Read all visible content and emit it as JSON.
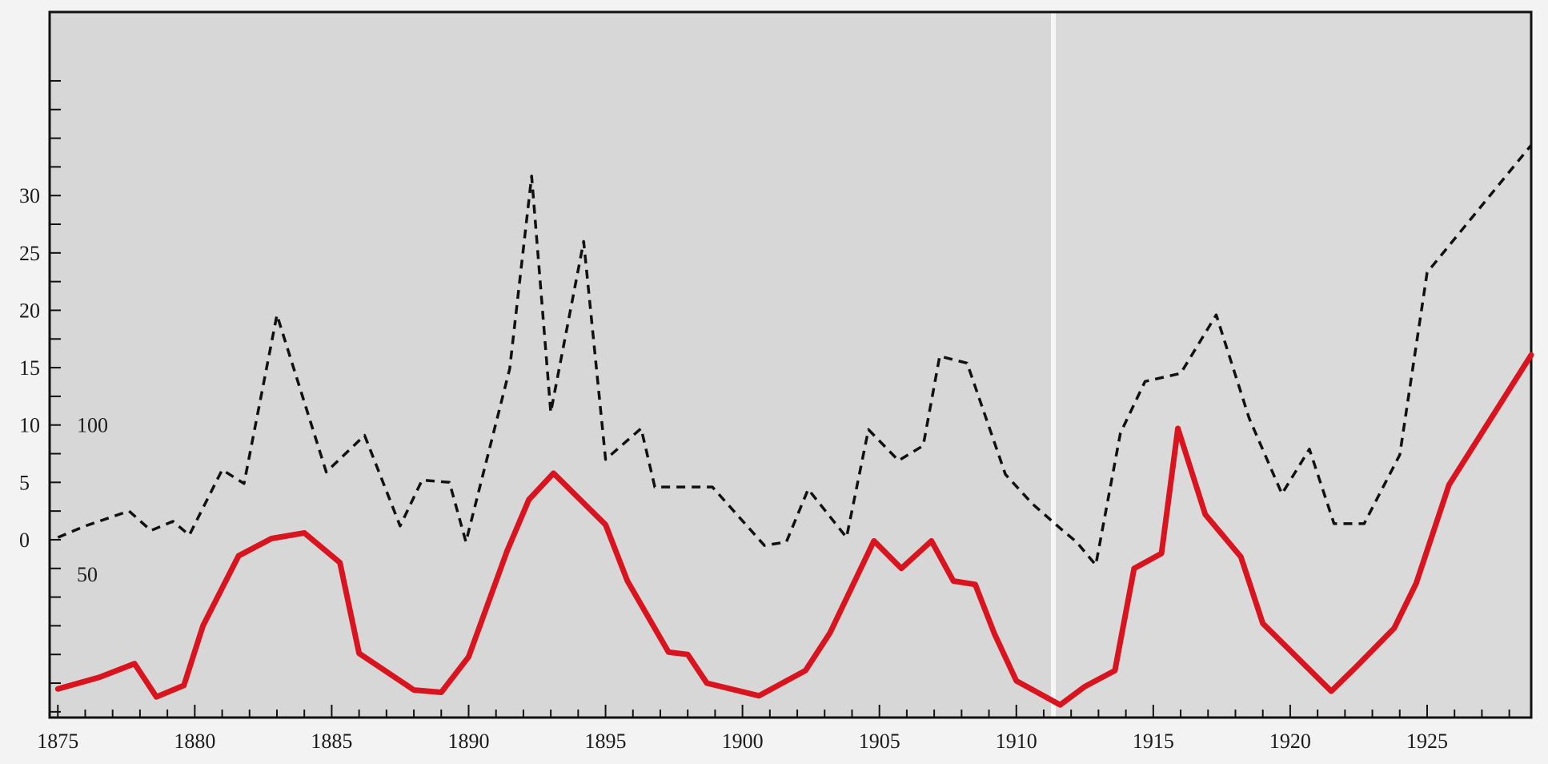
{
  "chart_data": {
    "type": "line",
    "title": "",
    "xlabel": "",
    "ylabel": "",
    "xlim": [
      1874.7,
      1928.8
    ],
    "ylim": [
      -15.5,
      46
    ],
    "grid": false,
    "x_ticks": [
      1875,
      1880,
      1885,
      1890,
      1895,
      1900,
      1905,
      1910,
      1915,
      1920,
      1925
    ],
    "x_tick_labels": [
      "1875",
      "1880",
      "1885",
      "1890",
      "1895",
      "1900",
      "1905",
      "1910",
      "1915",
      "1920",
      "1925"
    ],
    "y_ticks": [
      0,
      5,
      10,
      15,
      20,
      25,
      30
    ],
    "y_tick_labels": [
      "0",
      "5",
      "10",
      "15",
      "20",
      "25",
      "30"
    ],
    "extra_labels": [
      {
        "text": "100",
        "y": 10
      },
      {
        "text": "50",
        "y": -3
      }
    ],
    "series": [
      {
        "style": "dashed",
        "color": "#111111",
        "x": [
          1875,
          1876,
          1877.6,
          1878.4,
          1879.2,
          1879.8,
          1881,
          1881.8,
          1883,
          1884.8,
          1886.2,
          1887.5,
          1888.3,
          1889.3,
          1889.9,
          1891.5,
          1892.3,
          1893,
          1894.2,
          1895,
          1896.3,
          1896.8,
          1898.9,
          1900.8,
          1901.6,
          1902.4,
          1903.8,
          1904.6,
          1905.7,
          1906.6,
          1907.2,
          1908.2,
          1909.6,
          1910.6,
          1911.7,
          1912.2,
          1912.9,
          1913.8,
          1914.7,
          1916,
          1917.3,
          1918.5,
          1919.7,
          1920.7,
          1921.6,
          1922.7,
          1924,
          1925,
          1928.8
        ],
        "y": [
          0.2,
          1.2,
          2.5,
          0.8,
          1.6,
          0.4,
          6.1,
          4.9,
          19.6,
          5.9,
          9.1,
          1.2,
          5.2,
          5.0,
          -0.2,
          14.9,
          31.7,
          11.1,
          26.0,
          7.0,
          9.7,
          4.6,
          4.6,
          -0.5,
          -0.2,
          4.4,
          0.2,
          9.6,
          6.9,
          8.2,
          16.0,
          15.4,
          5.7,
          3.1,
          0.8,
          -0.2,
          -2.2,
          9.3,
          13.8,
          14.5,
          19.6,
          10.6,
          4.0,
          7.9,
          1.4,
          1.4,
          7.4,
          23.3,
          34.4
        ]
      },
      {
        "style": "solid",
        "color": "#d9141f",
        "x": [
          1875,
          1876.5,
          1877.8,
          1878.6,
          1879.6,
          1880.3,
          1881.6,
          1882.8,
          1884,
          1885.3,
          1886,
          1888,
          1889,
          1890,
          1891.4,
          1892.2,
          1893.1,
          1895,
          1895.8,
          1897.3,
          1898,
          1898.7,
          1900.6,
          1902.3,
          1903.2,
          1904.8,
          1905.8,
          1906.9,
          1907.7,
          1908.5,
          1909.2,
          1910,
          1911.6,
          1912.5,
          1913.6,
          1914.3,
          1915.3,
          1915.9,
          1916.9,
          1918.2,
          1919,
          1921.5,
          1922.4,
          1923.8,
          1924.6,
          1925.8,
          1928.8
        ],
        "y": [
          -13.0,
          -12.0,
          -10.8,
          -13.7,
          -12.7,
          -7.5,
          -1.4,
          0.1,
          0.6,
          -2.0,
          -9.9,
          -13.1,
          -13.3,
          -10.2,
          -1.0,
          3.5,
          5.8,
          1.3,
          -3.6,
          -9.8,
          -10.0,
          -12.5,
          -13.6,
          -11.4,
          -8.1,
          -0.1,
          -2.5,
          -0.1,
          -3.6,
          -3.9,
          -8.2,
          -12.3,
          -14.4,
          -12.8,
          -11.4,
          -2.5,
          -1.2,
          9.7,
          2.2,
          -1.5,
          -7.3,
          -13.2,
          -11.1,
          -7.7,
          -3.8,
          4.8,
          16.1
        ]
      }
    ]
  }
}
